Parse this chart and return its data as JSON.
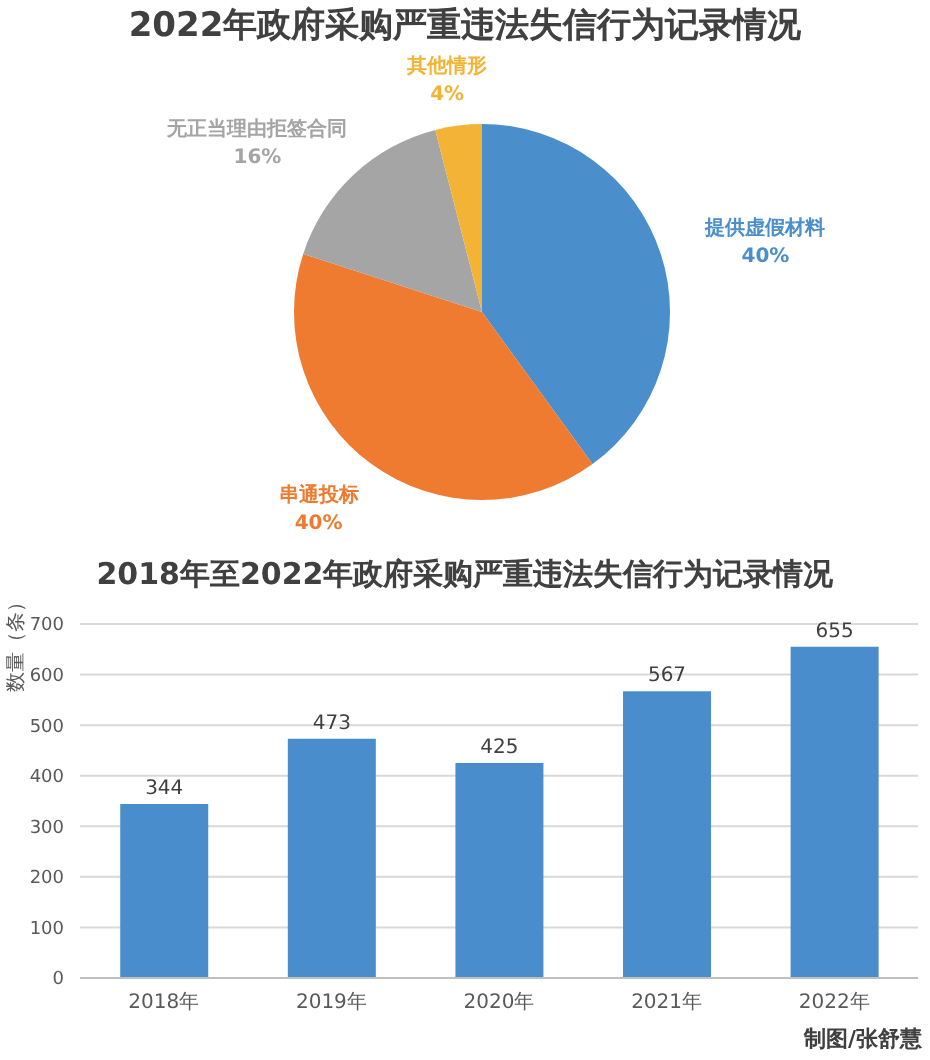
{
  "chart_data": [
    {
      "type": "pie",
      "title": "2022年政府采购严重违法失信行为记录情况",
      "categories": [
        "提供虚假材料",
        "串通投标",
        "无正当理由拒签合同",
        "其他情形"
      ],
      "values": [
        40,
        40,
        16,
        4
      ],
      "colors": [
        "#4a8ecb",
        "#ee7b30",
        "#a5a5a5",
        "#f3b435"
      ],
      "value_labels": [
        "40%",
        "40%",
        "16%",
        "4%"
      ]
    },
    {
      "type": "bar",
      "title": "2018年至2022年政府采购严重违法失信行为记录情况",
      "ylabel": "数量（条）",
      "categories": [
        "2018年",
        "2019年",
        "2020年",
        "2021年",
        "2022年"
      ],
      "values": [
        344,
        473,
        425,
        567,
        655
      ],
      "color": "#4a8dcc",
      "ylim": [
        0,
        700
      ],
      "yticks": [
        0,
        100,
        200,
        300,
        400,
        500,
        600,
        700
      ],
      "grid": "y",
      "data_labels": true,
      "annotations": [
        "制图/张舒慧"
      ]
    }
  ]
}
